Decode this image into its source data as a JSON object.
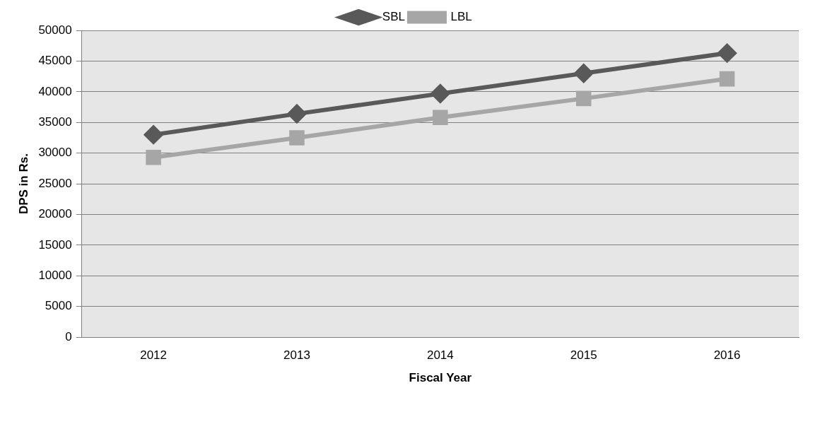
{
  "chart_data": {
    "type": "line",
    "xlabel": "Fiscal Year",
    "ylabel": "DPS in Rs.",
    "categories": [
      "2012",
      "2013",
      "2014",
      "2015",
      "2016"
    ],
    "series": [
      {
        "name": "SBL",
        "color": "#595959",
        "marker": "diamond",
        "values": [
          33000,
          36400,
          39700,
          43000,
          46300
        ]
      },
      {
        "name": "LBL",
        "color": "#a6a6a6",
        "marker": "square",
        "values": [
          29300,
          32500,
          35800,
          38900,
          42100
        ]
      }
    ],
    "ylim": [
      0,
      50000
    ],
    "yticks": [
      0,
      5000,
      10000,
      15000,
      20000,
      25000,
      30000,
      35000,
      40000,
      45000,
      50000
    ],
    "grid": "y",
    "legend": "top"
  }
}
